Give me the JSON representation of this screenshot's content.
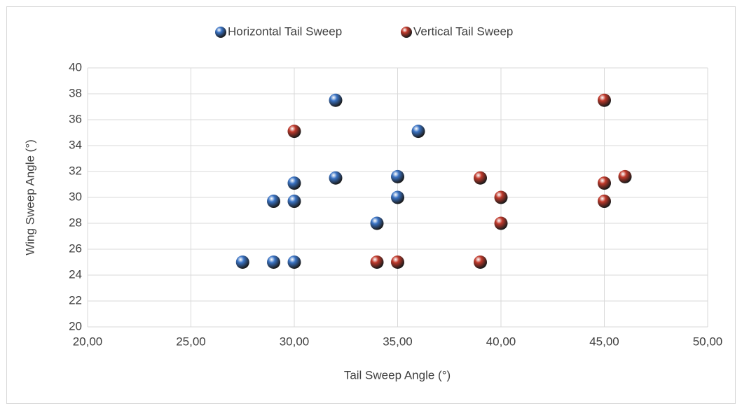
{
  "chart_data": {
    "type": "scatter",
    "xlabel": "Tail Sweep Angle (°)",
    "ylabel": "Wing Sweep Angle (°)",
    "xlim": [
      20,
      50
    ],
    "xticks": [
      {
        "value": 20,
        "label": "20,00"
      },
      {
        "value": 25,
        "label": "25,00"
      },
      {
        "value": 30,
        "label": "30,00"
      },
      {
        "value": 35,
        "label": "35,00"
      },
      {
        "value": 40,
        "label": "40,00"
      },
      {
        "value": 45,
        "label": "45,00"
      },
      {
        "value": 50,
        "label": "50,00"
      }
    ],
    "ylim": [
      20,
      40
    ],
    "yticks": [
      20,
      22,
      24,
      26,
      28,
      30,
      32,
      34,
      36,
      38,
      40
    ],
    "grid": true,
    "legend": "top",
    "series": [
      {
        "name": "Horizontal Tail Sweep",
        "color": "#3a73c4",
        "x": [
          27.5,
          29,
          30,
          29,
          30,
          30,
          32,
          32,
          35,
          35,
          34,
          36
        ],
        "values": [
          25,
          25,
          25,
          29.7,
          29.7,
          31.1,
          31.5,
          37.5,
          31.6,
          30,
          28,
          35.1
        ]
      },
      {
        "name": "Vertical Tail Sweep",
        "color": "#c0392b",
        "x": [
          30,
          34,
          35,
          39,
          39,
          40,
          40,
          45,
          45,
          45,
          46
        ],
        "values": [
          35.1,
          25,
          25,
          25,
          31.5,
          30,
          28,
          37.5,
          31.1,
          29.7,
          31.6
        ]
      }
    ]
  }
}
